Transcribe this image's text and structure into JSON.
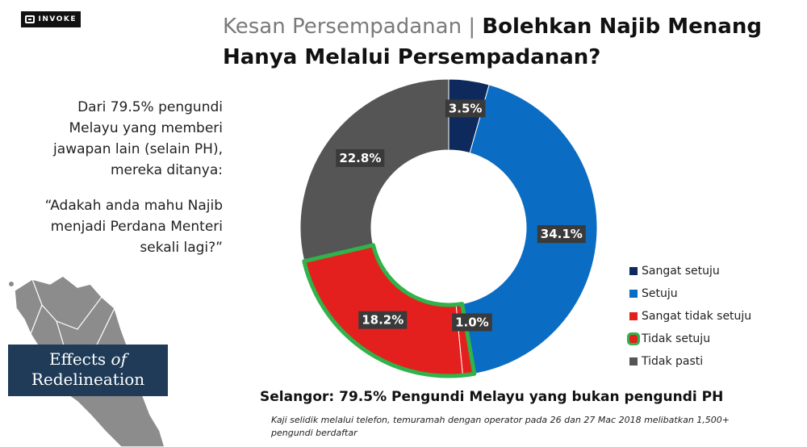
{
  "logo": {
    "text": "INVOKE"
  },
  "header": {
    "title_prefix": "Kesan Persempadanan",
    "separator": "|",
    "title_main": "Bolehkan Najib Menang Hanya Melalui Persempadanan?"
  },
  "intro_text": "Dari 79.5% pengundi Melayu yang memberi jawapan lain (selain PH), mereka ditanya:",
  "question_text": "“Adakah anda mahu Najib menjadi Perdana Menteri sekali lagi?”",
  "badge": {
    "line1_a": "Effects",
    "line1_b": "of",
    "line2": "Redelineation"
  },
  "colors": {
    "map": "#8c8c8c",
    "badge_bg": "#1f3b57",
    "highlight": "#2fb34a"
  },
  "chart_data": {
    "type": "pie",
    "style": "donut",
    "start_angle_deg": 0,
    "direction": "clockwise",
    "highlight_category": "Tidak setuju",
    "series": [
      {
        "name": "Sangat setuju",
        "value": 3.5,
        "label": "3.5%",
        "color": "#0e2a5c"
      },
      {
        "name": "Setuju",
        "value": 34.1,
        "label": "34.1%",
        "color": "#0a6cc2"
      },
      {
        "name": "Tidak setuju",
        "value": 1.0,
        "label": "1.0%",
        "color": "#e4201e"
      },
      {
        "name": "Sangat tidak setuju",
        "value": 18.2,
        "label": "18.2%",
        "color": "#e4201e"
      },
      {
        "name": "Tidak pasti",
        "value": 22.8,
        "label": "22.8%",
        "color": "#555555"
      }
    ],
    "legend": [
      {
        "label": "Sangat setuju",
        "color": "#0e2a5c"
      },
      {
        "label": "Setuju",
        "color": "#0a6cc2"
      },
      {
        "label": "Sangat tidak setuju",
        "color": "#e4201e"
      },
      {
        "label": "Tidak setuju",
        "color": "#e4201e"
      },
      {
        "label": "Tidak pasti",
        "color": "#555555"
      }
    ],
    "legend_position": "bottom-right"
  },
  "subtitle": "Selangor: 79.5% Pengundi Melayu yang bukan pengundi PH",
  "footnote": "Kaji selidik melalui telefon, temuramah dengan operator pada 26 dan 27 Mac 2018 melibatkan 1,500+ pengundi berdaftar"
}
